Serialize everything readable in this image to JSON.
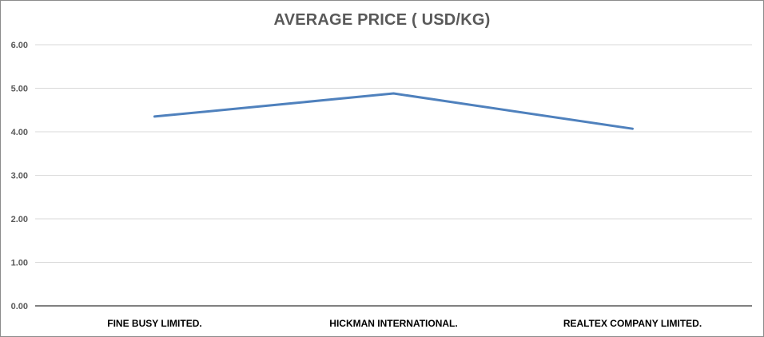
{
  "chart_data": {
    "type": "line",
    "title": "AVERAGE PRICE ( USD/KG)",
    "categories": [
      "FINE BUSY LIMITED.",
      "HICKMAN INTERNATIONAL.",
      "REALTEX COMPANY LIMITED."
    ],
    "values": [
      4.35,
      4.88,
      4.07
    ],
    "ylim": [
      0,
      6
    ],
    "yticks": [
      "0.00",
      "1.00",
      "2.00",
      "3.00",
      "4.00",
      "5.00",
      "6.00"
    ],
    "grid": true,
    "legend": "none",
    "colors": {
      "line": "#4f81bd",
      "grid": "#d9d9d9",
      "axis": "#000000",
      "title": "#595959"
    }
  }
}
